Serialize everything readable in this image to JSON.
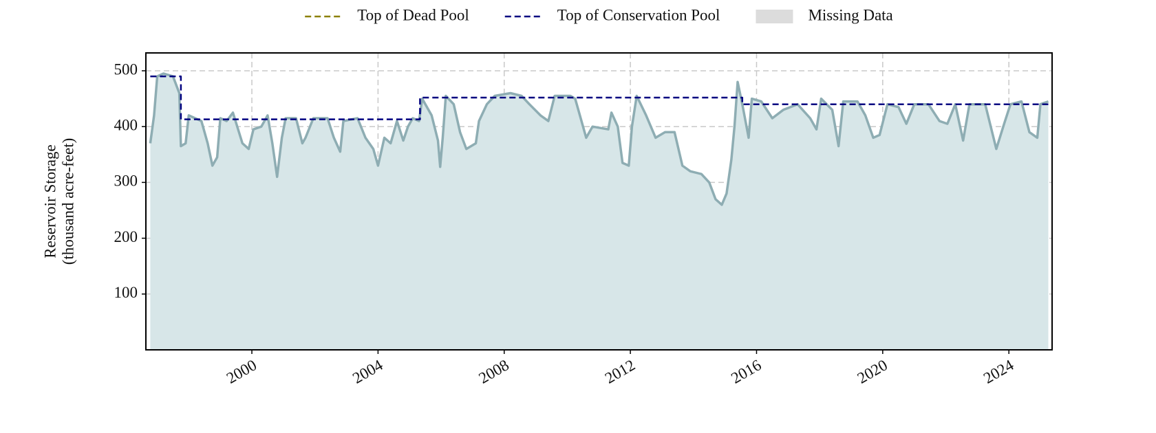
{
  "chart_data": {
    "type": "line",
    "y_label": [
      "Reservoir Storage",
      "(thousand acre-feet)"
    ],
    "xlim": [
      1996.64,
      2025.37
    ],
    "xticks": [
      2000,
      2004,
      2008,
      2012,
      2016,
      2020,
      2024
    ],
    "ylim": [
      0,
      532
    ],
    "yticks": [
      100,
      200,
      300,
      400,
      500
    ],
    "grid": true,
    "series": [
      {
        "name": "Top of Dead Pool",
        "color": "#8b8000",
        "dashed": true,
        "x": [],
        "values": []
      },
      {
        "name": "Top of Conservation Pool",
        "color": "#000080",
        "dashed": true,
        "x": [
          1996.78,
          1997.75,
          1997.75,
          2005.33,
          2005.33,
          2015.55,
          2015.55,
          2025.25
        ],
        "values": [
          490,
          490,
          413,
          413,
          452,
          452,
          440,
          440
        ]
      },
      {
        "color": "#8eadb3",
        "fill": "#d7e6e8",
        "dashed": false,
        "x": [
          1996.78,
          1996.9,
          1997.0,
          1997.2,
          1997.5,
          1997.7,
          1997.75,
          1997.9,
          1998.0,
          1998.4,
          1998.6,
          1998.75,
          1998.9,
          1999.0,
          1999.2,
          1999.4,
          1999.7,
          1999.9,
          2000.05,
          2000.3,
          2000.5,
          2000.65,
          2000.8,
          2000.95,
          2001.07,
          2001.4,
          2001.6,
          2001.7,
          2001.95,
          2002.4,
          2002.6,
          2002.8,
          2002.9,
          2003.35,
          2003.6,
          2003.85,
          2004.0,
          2004.2,
          2004.4,
          2004.6,
          2004.8,
          2004.95,
          2005.1,
          2005.3,
          2005.4,
          2005.7,
          2005.9,
          2005.97,
          2006.05,
          2006.15,
          2006.4,
          2006.6,
          2006.8,
          2007.1,
          2007.2,
          2007.45,
          2007.7,
          2008.2,
          2008.55,
          2008.8,
          2009.15,
          2009.4,
          2009.6,
          2010.1,
          2010.25,
          2010.6,
          2010.8,
          2011.3,
          2011.4,
          2011.6,
          2011.75,
          2011.95,
          2012.05,
          2012.2,
          2012.5,
          2012.8,
          2013.1,
          2013.4,
          2013.65,
          2013.9,
          2014.25,
          2014.5,
          2014.7,
          2014.9,
          2015.05,
          2015.2,
          2015.3,
          2015.4,
          2015.55,
          2015.75,
          2015.85,
          2016.15,
          2016.5,
          2016.85,
          2017.3,
          2017.7,
          2017.9,
          2018.05,
          2018.4,
          2018.6,
          2018.75,
          2019.2,
          2019.45,
          2019.7,
          2019.9,
          2020.15,
          2020.5,
          2020.75,
          2021.0,
          2021.45,
          2021.8,
          2022.05,
          2022.3,
          2022.55,
          2022.75,
          2023.25,
          2023.6,
          2023.85,
          2024.05,
          2024.4,
          2024.65,
          2024.9,
          2025.0,
          2025.25
        ],
        "values": [
          370,
          420,
          490,
          495,
          490,
          460,
          365,
          370,
          420,
          410,
          370,
          330,
          345,
          415,
          410,
          425,
          370,
          360,
          395,
          400,
          420,
          370,
          310,
          380,
          415,
          415,
          370,
          380,
          415,
          415,
          380,
          355,
          410,
          415,
          380,
          360,
          330,
          380,
          370,
          410,
          375,
          400,
          415,
          410,
          450,
          420,
          375,
          328,
          380,
          455,
          440,
          390,
          360,
          370,
          410,
          440,
          455,
          460,
          455,
          440,
          420,
          410,
          455,
          455,
          450,
          380,
          400,
          395,
          425,
          400,
          335,
          330,
          400,
          455,
          420,
          380,
          390,
          390,
          330,
          320,
          315,
          300,
          270,
          260,
          280,
          340,
          400,
          480,
          440,
          380,
          450,
          445,
          415,
          430,
          440,
          415,
          395,
          450,
          430,
          365,
          445,
          445,
          420,
          380,
          385,
          440,
          435,
          405,
          440,
          440,
          410,
          405,
          440,
          375,
          440,
          440,
          360,
          405,
          440,
          445,
          390,
          380,
          440,
          445
        ]
      }
    ],
    "missing_data": {
      "name": "Missing Data",
      "color": "#dcdcdc"
    }
  }
}
